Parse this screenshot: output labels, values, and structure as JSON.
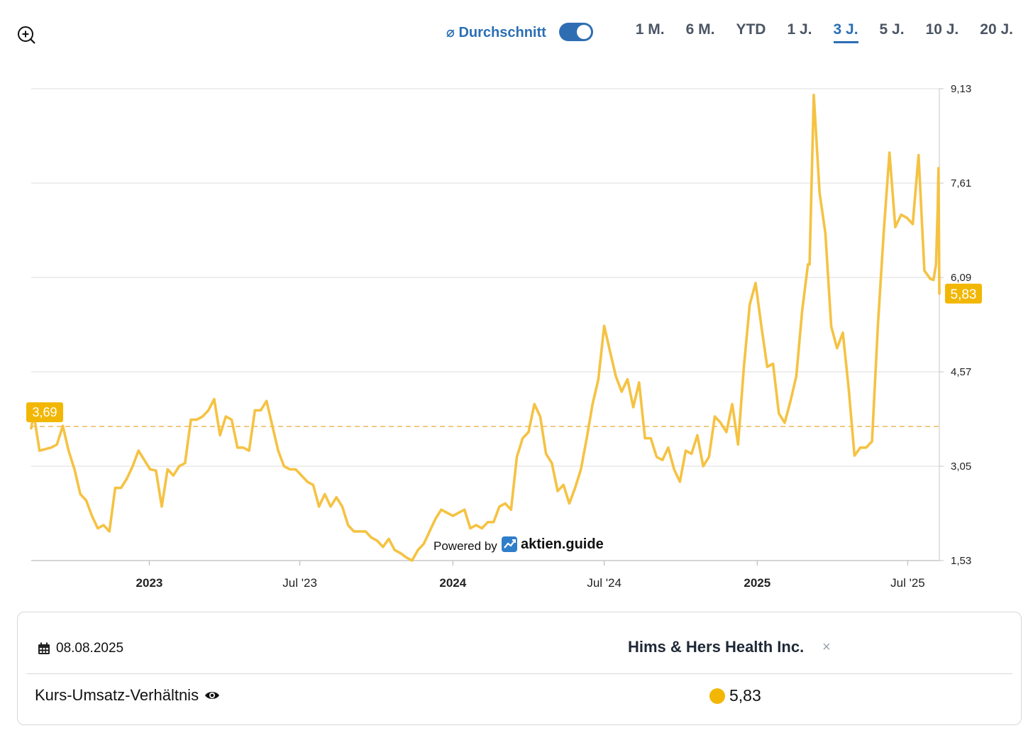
{
  "toolbar": {
    "average_label": "⌀ Durchschnitt",
    "average_enabled": true,
    "ranges": [
      "1 M.",
      "6 M.",
      "YTD",
      "1 J.",
      "3 J.",
      "5 J.",
      "10 J.",
      "20 J."
    ],
    "active_range": "3 J."
  },
  "watermark": {
    "prefix": "Powered by",
    "brand": "aktien.guide"
  },
  "colors": {
    "line": "#f5c242",
    "accent": "#2c6fb4",
    "badge": "#f2b705"
  },
  "chart_data": {
    "type": "line",
    "title": "",
    "xlabel": "",
    "ylabel": "",
    "x_range": [
      "2022-08-12",
      "2025-08-08"
    ],
    "ylim": [
      1.53,
      9.13
    ],
    "y_ticks": [
      "9,13",
      "7,61",
      "6,09",
      "4,57",
      "3,05",
      "1,53"
    ],
    "x_ticks": [
      {
        "date": "2023-01-01",
        "label": "2023",
        "bold": true
      },
      {
        "date": "2023-07-01",
        "label": "Jul '23",
        "bold": false
      },
      {
        "date": "2024-01-01",
        "label": "2024",
        "bold": true
      },
      {
        "date": "2024-07-01",
        "label": "Jul '24",
        "bold": false
      },
      {
        "date": "2025-01-01",
        "label": "2025",
        "bold": true
      },
      {
        "date": "2025-07-01",
        "label": "Jul '25",
        "bold": false
      }
    ],
    "average": {
      "value": 3.69,
      "label": "3,69"
    },
    "last": {
      "value": 5.83,
      "label": "5,83"
    },
    "series": [
      {
        "points": [
          [
            "2022-08-12",
            3.66
          ],
          [
            "2022-08-15",
            3.9
          ],
          [
            "2022-08-22",
            3.3
          ],
          [
            "2022-09-05",
            3.35
          ],
          [
            "2022-09-12",
            3.4
          ],
          [
            "2022-09-19",
            3.7
          ],
          [
            "2022-09-26",
            3.3
          ],
          [
            "2022-10-03",
            3.0
          ],
          [
            "2022-10-10",
            2.6
          ],
          [
            "2022-10-17",
            2.5
          ],
          [
            "2022-10-24",
            2.25
          ],
          [
            "2022-10-31",
            2.05
          ],
          [
            "2022-11-07",
            2.1
          ],
          [
            "2022-11-14",
            2.0
          ],
          [
            "2022-11-21",
            2.7
          ],
          [
            "2022-11-28",
            2.7
          ],
          [
            "2022-12-05",
            2.85
          ],
          [
            "2022-12-12",
            3.05
          ],
          [
            "2022-12-19",
            3.3
          ],
          [
            "2022-12-26",
            3.15
          ],
          [
            "2023-01-02",
            3.0
          ],
          [
            "2023-01-09",
            2.98
          ],
          [
            "2023-01-16",
            2.4
          ],
          [
            "2023-01-23",
            3.0
          ],
          [
            "2023-01-30",
            2.9
          ],
          [
            "2023-02-06",
            3.05
          ],
          [
            "2023-02-13",
            3.1
          ],
          [
            "2023-02-20",
            3.8
          ],
          [
            "2023-02-27",
            3.8
          ],
          [
            "2023-03-06",
            3.85
          ],
          [
            "2023-03-13",
            3.95
          ],
          [
            "2023-03-20",
            4.13
          ],
          [
            "2023-03-27",
            3.55
          ],
          [
            "2023-04-03",
            3.85
          ],
          [
            "2023-04-10",
            3.8
          ],
          [
            "2023-04-17",
            3.35
          ],
          [
            "2023-04-24",
            3.35
          ],
          [
            "2023-05-01",
            3.3
          ],
          [
            "2023-05-08",
            3.95
          ],
          [
            "2023-05-15",
            3.95
          ],
          [
            "2023-05-22",
            4.1
          ],
          [
            "2023-05-29",
            3.7
          ],
          [
            "2023-06-05",
            3.3
          ],
          [
            "2023-06-12",
            3.05
          ],
          [
            "2023-06-19",
            3.0
          ],
          [
            "2023-06-26",
            3.0
          ],
          [
            "2023-07-03",
            2.9
          ],
          [
            "2023-07-10",
            2.8
          ],
          [
            "2023-07-17",
            2.75
          ],
          [
            "2023-07-24",
            2.4
          ],
          [
            "2023-07-31",
            2.6
          ],
          [
            "2023-08-07",
            2.4
          ],
          [
            "2023-08-14",
            2.55
          ],
          [
            "2023-08-21",
            2.4
          ],
          [
            "2023-08-28",
            2.1
          ],
          [
            "2023-09-04",
            2.0
          ],
          [
            "2023-09-11",
            2.0
          ],
          [
            "2023-09-18",
            2.0
          ],
          [
            "2023-09-25",
            1.9
          ],
          [
            "2023-10-02",
            1.85
          ],
          [
            "2023-10-09",
            1.75
          ],
          [
            "2023-10-16",
            1.88
          ],
          [
            "2023-10-23",
            1.7
          ],
          [
            "2023-10-30",
            1.65
          ],
          [
            "2023-11-06",
            1.58
          ],
          [
            "2023-11-13",
            1.53
          ],
          [
            "2023-11-20",
            1.7
          ],
          [
            "2023-11-27",
            1.8
          ],
          [
            "2023-12-04",
            2.0
          ],
          [
            "2023-12-11",
            2.2
          ],
          [
            "2023-12-18",
            2.35
          ],
          [
            "2023-12-25",
            2.3
          ],
          [
            "2024-01-01",
            2.25
          ],
          [
            "2024-01-08",
            2.3
          ],
          [
            "2024-01-15",
            2.35
          ],
          [
            "2024-01-22",
            2.05
          ],
          [
            "2024-01-29",
            2.1
          ],
          [
            "2024-02-05",
            2.05
          ],
          [
            "2024-02-12",
            2.15
          ],
          [
            "2024-02-19",
            2.15
          ],
          [
            "2024-02-26",
            2.4
          ],
          [
            "2024-03-04",
            2.45
          ],
          [
            "2024-03-11",
            2.35
          ],
          [
            "2024-03-18",
            3.2
          ],
          [
            "2024-03-25",
            3.5
          ],
          [
            "2024-04-01",
            3.6
          ],
          [
            "2024-04-08",
            4.05
          ],
          [
            "2024-04-15",
            3.85
          ],
          [
            "2024-04-22",
            3.25
          ],
          [
            "2024-04-29",
            3.1
          ],
          [
            "2024-05-06",
            2.65
          ],
          [
            "2024-05-13",
            2.75
          ],
          [
            "2024-05-20",
            2.45
          ],
          [
            "2024-05-27",
            2.7
          ],
          [
            "2024-06-03",
            3.0
          ],
          [
            "2024-06-10",
            3.5
          ],
          [
            "2024-06-17",
            4.05
          ],
          [
            "2024-06-24",
            4.45
          ],
          [
            "2024-07-01",
            5.31
          ],
          [
            "2024-07-08",
            4.9
          ],
          [
            "2024-07-15",
            4.5
          ],
          [
            "2024-07-22",
            4.25
          ],
          [
            "2024-07-29",
            4.45
          ],
          [
            "2024-08-05",
            4.0
          ],
          [
            "2024-08-12",
            4.4
          ],
          [
            "2024-08-19",
            3.5
          ],
          [
            "2024-08-26",
            3.5
          ],
          [
            "2024-09-02",
            3.2
          ],
          [
            "2024-09-09",
            3.15
          ],
          [
            "2024-09-16",
            3.35
          ],
          [
            "2024-09-23",
            3.0
          ],
          [
            "2024-09-30",
            2.8
          ],
          [
            "2024-10-07",
            3.3
          ],
          [
            "2024-10-14",
            3.25
          ],
          [
            "2024-10-21",
            3.55
          ],
          [
            "2024-10-28",
            3.05
          ],
          [
            "2024-11-04",
            3.2
          ],
          [
            "2024-11-11",
            3.85
          ],
          [
            "2024-11-18",
            3.75
          ],
          [
            "2024-11-25",
            3.6
          ],
          [
            "2024-12-02",
            4.05
          ],
          [
            "2024-12-09",
            3.4
          ],
          [
            "2024-12-16",
            4.65
          ],
          [
            "2024-12-23",
            5.65
          ],
          [
            "2024-12-30",
            6.0
          ],
          [
            "2025-01-06",
            5.3
          ],
          [
            "2025-01-13",
            4.65
          ],
          [
            "2025-01-20",
            4.7
          ],
          [
            "2025-01-27",
            3.9
          ],
          [
            "2025-02-03",
            3.75
          ],
          [
            "2025-02-10",
            4.1
          ],
          [
            "2025-02-17",
            4.5
          ],
          [
            "2025-02-24",
            5.55
          ],
          [
            "2025-03-03",
            6.3
          ],
          [
            "2025-03-05",
            6.3
          ],
          [
            "2025-03-10",
            9.03
          ],
          [
            "2025-03-17",
            7.45
          ],
          [
            "2025-03-24",
            6.8
          ],
          [
            "2025-03-31",
            5.3
          ],
          [
            "2025-04-07",
            4.95
          ],
          [
            "2025-04-14",
            5.2
          ],
          [
            "2025-04-21",
            4.3
          ],
          [
            "2025-04-28",
            3.22
          ],
          [
            "2025-05-05",
            3.35
          ],
          [
            "2025-05-12",
            3.35
          ],
          [
            "2025-05-19",
            3.45
          ],
          [
            "2025-05-26",
            5.3
          ],
          [
            "2025-06-02",
            6.8
          ],
          [
            "2025-06-09",
            8.1
          ],
          [
            "2025-06-16",
            6.9
          ],
          [
            "2025-06-23",
            7.1
          ],
          [
            "2025-06-30",
            7.05
          ],
          [
            "2025-07-07",
            6.95
          ],
          [
            "2025-07-14",
            8.06
          ],
          [
            "2025-07-21",
            6.2
          ],
          [
            "2025-07-28",
            6.07
          ],
          [
            "2025-08-01",
            6.05
          ],
          [
            "2025-08-04",
            6.3
          ],
          [
            "2025-08-06",
            7.2
          ],
          [
            "2025-08-07",
            7.85
          ],
          [
            "2025-08-08",
            5.83
          ]
        ]
      }
    ]
  },
  "info": {
    "date": "08.08.2025",
    "company": "Hims & Hers Health Inc.",
    "close_symbol": "×",
    "metric_label": "Kurs-Umsatz-Verhältnis",
    "metric_value": "5,83"
  }
}
